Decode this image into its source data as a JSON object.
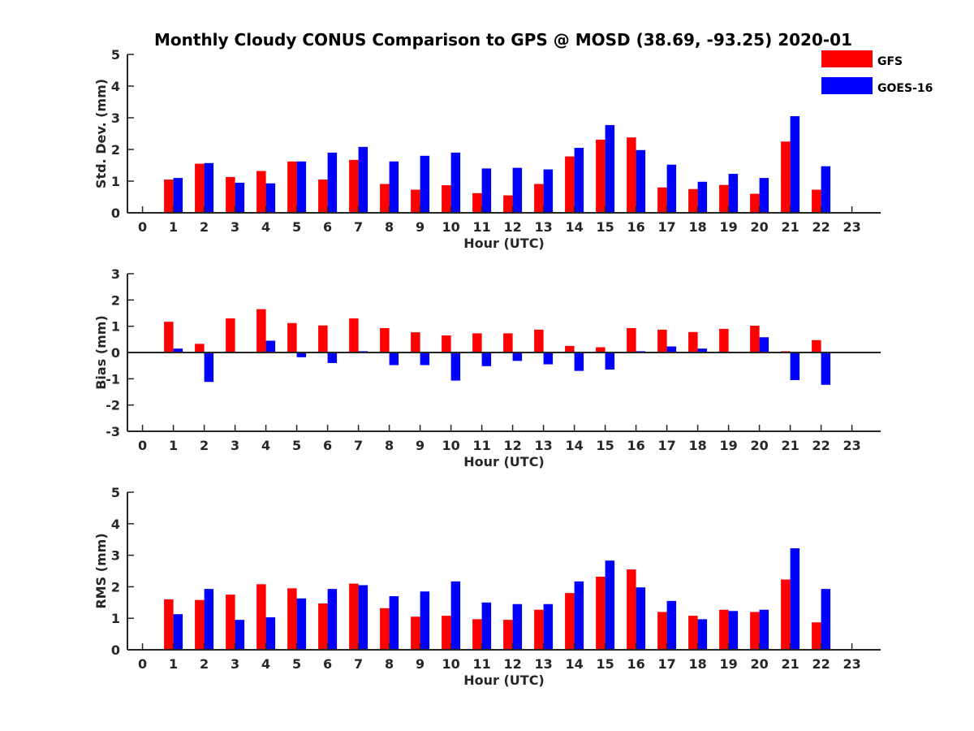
{
  "chart_data": {
    "type": "bar",
    "title": "Monthly Cloudy CONUS Comparison to GPS @ MOSD (38.69, -93.25) 2020-01",
    "legend": {
      "placement": "top-right",
      "entries": [
        "GFS",
        "GOES-16"
      ]
    },
    "colors": {
      "GFS": "#ff0000",
      "GOES-16": "#0000ff"
    },
    "grid": false,
    "x": [
      0,
      1,
      2,
      3,
      4,
      5,
      6,
      7,
      8,
      9,
      10,
      11,
      12,
      13,
      14,
      15,
      16,
      17,
      18,
      19,
      20,
      21,
      22,
      23
    ],
    "panels": [
      {
        "ylabel": "Std. Dev. (mm)",
        "xlabel": "Hour (UTC)",
        "ylim": [
          0,
          5
        ],
        "yticks": [
          0,
          1,
          2,
          3,
          4,
          5
        ],
        "series": [
          {
            "name": "GFS",
            "values": [
              null,
              1.05,
              1.55,
              1.13,
              1.32,
              1.62,
              1.05,
              1.67,
              0.91,
              0.73,
              0.87,
              0.62,
              0.55,
              0.91,
              1.78,
              2.31,
              2.38,
              0.8,
              0.75,
              0.88,
              0.6,
              2.25,
              0.73,
              null
            ]
          },
          {
            "name": "GOES-16",
            "values": [
              null,
              1.1,
              1.57,
              0.95,
              0.93,
              1.62,
              1.9,
              2.08,
              1.62,
              1.8,
              1.9,
              1.4,
              1.42,
              1.37,
              2.05,
              2.77,
              1.98,
              1.52,
              0.98,
              1.23,
              1.1,
              3.05,
              1.47,
              null
            ]
          }
        ]
      },
      {
        "ylabel": "Bias (mm)",
        "xlabel": "Hour (UTC)",
        "ylim": [
          -3,
          3
        ],
        "yticks": [
          -3,
          -2,
          -1,
          0,
          1,
          2,
          3
        ],
        "series": [
          {
            "name": "GFS",
            "values": [
              null,
              1.17,
              0.33,
              1.3,
              1.65,
              1.12,
              1.03,
              1.3,
              0.93,
              0.77,
              0.65,
              0.73,
              0.73,
              0.87,
              0.25,
              0.2,
              0.93,
              0.87,
              0.78,
              0.9,
              1.02,
              0.05,
              0.47,
              null
            ]
          },
          {
            "name": "GOES-16",
            "values": [
              null,
              0.15,
              -1.12,
              null,
              0.45,
              -0.18,
              -0.4,
              0.05,
              -0.48,
              -0.48,
              -1.07,
              -0.52,
              -0.32,
              -0.45,
              -0.7,
              -0.65,
              0.05,
              0.23,
              0.15,
              null,
              0.58,
              -1.05,
              -1.23,
              null
            ]
          }
        ]
      },
      {
        "ylabel": "RMS (mm)",
        "xlabel": "Hour (UTC)",
        "ylim": [
          0,
          5
        ],
        "yticks": [
          0,
          1,
          2,
          3,
          4,
          5
        ],
        "series": [
          {
            "name": "GFS",
            "values": [
              null,
              1.6,
              1.58,
              1.75,
              2.08,
              1.95,
              1.47,
              2.1,
              1.32,
              1.05,
              1.08,
              0.97,
              0.95,
              1.27,
              1.8,
              2.32,
              2.55,
              1.2,
              1.08,
              1.27,
              1.2,
              2.23,
              0.87,
              null
            ]
          },
          {
            "name": "GOES-16",
            "values": [
              null,
              1.13,
              1.93,
              0.95,
              1.03,
              1.63,
              1.93,
              2.05,
              1.7,
              1.85,
              2.17,
              1.5,
              1.45,
              1.45,
              2.17,
              2.83,
              1.98,
              1.55,
              0.97,
              1.23,
              1.27,
              3.22,
              1.93,
              null
            ]
          }
        ]
      }
    ]
  }
}
